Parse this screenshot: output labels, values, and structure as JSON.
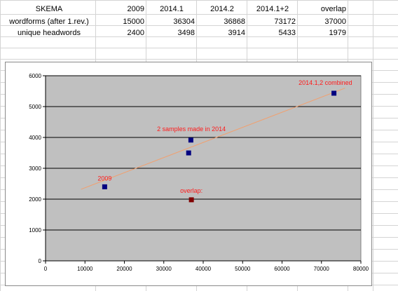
{
  "table": {
    "headers": [
      "SKEMA",
      "2009",
      "2014.1",
      "2014.2",
      "2014.1+2",
      "overlap"
    ],
    "rows": [
      {
        "label": "wordforms (after 1.rev.)",
        "values": [
          "15000",
          "36304",
          "36868",
          "73172",
          "37000"
        ]
      },
      {
        "label": "unique headwords",
        "values": [
          "2400",
          "3498",
          "3914",
          "5433",
          "1979"
        ]
      }
    ]
  },
  "chart_data": {
    "type": "scatter",
    "xlim": [
      0,
      80000
    ],
    "ylim": [
      0,
      6000
    ],
    "x_ticks": [
      0,
      10000,
      20000,
      30000,
      40000,
      50000,
      60000,
      70000,
      80000
    ],
    "y_ticks": [
      0,
      1000,
      2000,
      3000,
      4000,
      5000,
      6000
    ],
    "grid": "horizontal",
    "plot_background": "#c0c0c0",
    "series": [
      {
        "color": "#000080",
        "points": [
          {
            "x": 15000,
            "y": 2400
          },
          {
            "x": 36304,
            "y": 3498
          },
          {
            "x": 36868,
            "y": 3914
          },
          {
            "x": 73172,
            "y": 5433
          }
        ]
      },
      {
        "color": "#800000",
        "points": [
          {
            "x": 37000,
            "y": 1979
          }
        ]
      }
    ],
    "trendline": {
      "color": "#f0a070",
      "x": [
        9000,
        76000
      ],
      "y": [
        2320,
        5600
      ]
    },
    "annotations": [
      {
        "text": "2009",
        "x": 15000,
        "y": 2600,
        "color": "#ff1a1a"
      },
      {
        "text": "2 samples made in 2014",
        "x": 37000,
        "y": 4200,
        "color": "#ff1a1a"
      },
      {
        "text": "2014.1,2 combined",
        "x": 71000,
        "y": 5700,
        "color": "#ff1a1a"
      },
      {
        "text": "overlap:",
        "x": 37000,
        "y": 2200,
        "color": "#ff1a1a"
      }
    ]
  }
}
